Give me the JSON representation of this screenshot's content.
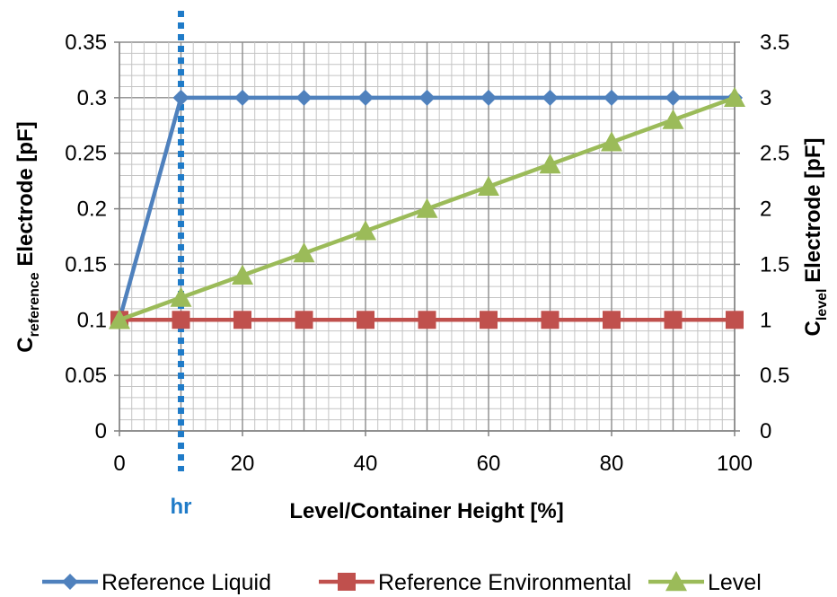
{
  "chart_data": {
    "type": "line",
    "x_label": "Level/Container Height [%]",
    "y_left_label": {
      "main": "C",
      "sub": "reference",
      "rest": " Electrode [pF]"
    },
    "y_right_label": {
      "main": "C",
      "sub": "level",
      "rest": " Electrode [pF]"
    },
    "x_ticks": [
      "0",
      "20",
      "40",
      "60",
      "80",
      "100"
    ],
    "y_left_ticks": [
      "0",
      "0.05",
      "0.1",
      "0.15",
      "0.2",
      "0.25",
      "0.3",
      "0.35"
    ],
    "y_right_ticks": [
      "0",
      "0.5",
      "1",
      "1.5",
      "2",
      "2.5",
      "3",
      "3.5"
    ],
    "xlim": [
      0,
      100
    ],
    "ylim_left": [
      0,
      0.35
    ],
    "ylim_right": [
      0,
      3.5
    ],
    "grid": true,
    "legend_position": "bottom",
    "annotation": {
      "label": "hr",
      "x": 10,
      "color": "#1F7BC8"
    },
    "series": [
      {
        "name": "Reference Liquid",
        "axis": "left",
        "color": "#4F81BD",
        "marker": "diamond",
        "x": [
          0,
          10,
          20,
          30,
          40,
          50,
          60,
          70,
          80,
          90,
          100
        ],
        "y": [
          0.1,
          0.3,
          0.3,
          0.3,
          0.3,
          0.3,
          0.3,
          0.3,
          0.3,
          0.3,
          0.3
        ]
      },
      {
        "name": "Reference Environmental",
        "axis": "left",
        "color": "#C0504D",
        "marker": "square",
        "x": [
          0,
          10,
          20,
          30,
          40,
          50,
          60,
          70,
          80,
          90,
          100
        ],
        "y": [
          0.1,
          0.1,
          0.1,
          0.1,
          0.1,
          0.1,
          0.1,
          0.1,
          0.1,
          0.1,
          0.1
        ]
      },
      {
        "name": "Level",
        "axis": "right",
        "color": "#9BBB59",
        "marker": "triangle",
        "x": [
          0,
          10,
          20,
          30,
          40,
          50,
          60,
          70,
          80,
          90,
          100
        ],
        "y": [
          1.0,
          1.2,
          1.4,
          1.6,
          1.8,
          2.0,
          2.2,
          2.4,
          2.6,
          2.8,
          3.0
        ]
      }
    ]
  }
}
